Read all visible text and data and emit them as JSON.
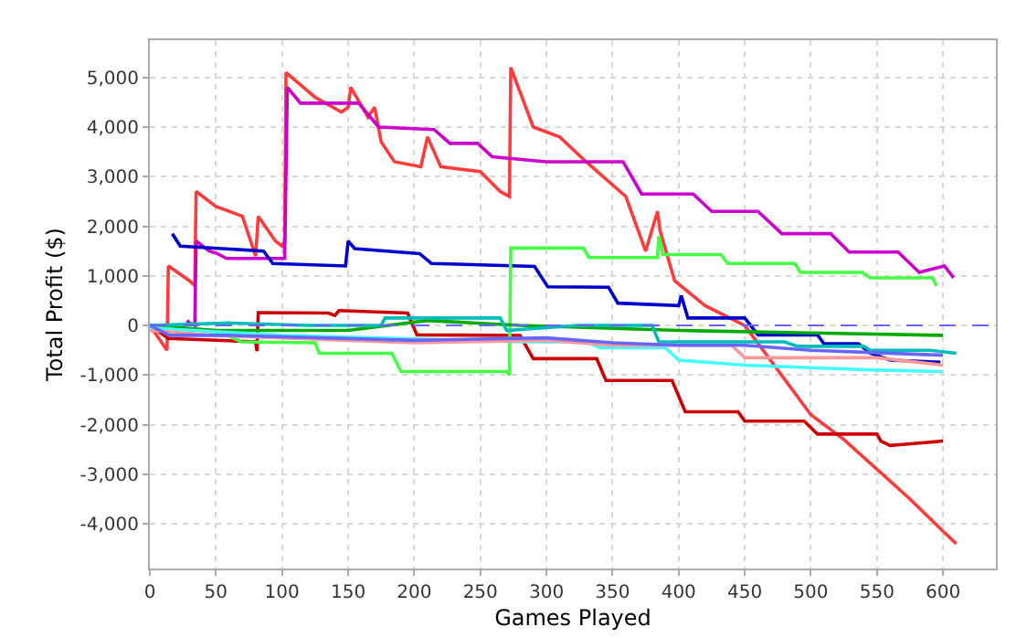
{
  "chart_data": {
    "type": "line",
    "xlabel": "Games Played",
    "ylabel": "Total Profit ($)",
    "xlim": [
      0,
      640
    ],
    "ylim": [
      -4900,
      5750
    ],
    "xticks": [
      0,
      50,
      100,
      150,
      200,
      250,
      300,
      350,
      400,
      450,
      500,
      550,
      600
    ],
    "yticks": [
      {
        "value": -4000,
        "label": "-4,000"
      },
      {
        "value": -3000,
        "label": "-3,000"
      },
      {
        "value": -2000,
        "label": "-2,000"
      },
      {
        "value": -1000,
        "label": "-1,000"
      },
      0,
      {
        "value": 1000,
        "label": "1,000"
      },
      {
        "value": 2000,
        "label": "2,000"
      },
      {
        "value": 3000,
        "label": "3,000"
      },
      {
        "value": 4000,
        "label": "4,000"
      },
      {
        "value": 5000,
        "label": "5,000"
      }
    ],
    "grid": true,
    "marker": "none",
    "line_style": "solid",
    "ref_lines": [
      {
        "axis": "y",
        "value": 0,
        "color": "#6666ff",
        "line_style": "dashed"
      }
    ],
    "series": [
      {
        "color": "#ff3b3b",
        "x": [
          0,
          13,
          14,
          30,
          34,
          35,
          50,
          70,
          80,
          82,
          95,
          100,
          102,
          103,
          125,
          145,
          150,
          152,
          165,
          170,
          175,
          185,
          205,
          210,
          220,
          250,
          265,
          272,
          273,
          290,
          310,
          330,
          360,
          375,
          384,
          386,
          397,
          420,
          450,
          475,
          500,
          525,
          550,
          575,
          600,
          610
        ],
        "values": [
          0,
          -500,
          1200,
          900,
          800,
          2700,
          2400,
          2200,
          1400,
          2200,
          1700,
          1600,
          1700,
          5100,
          4600,
          4300,
          4400,
          4800,
          4200,
          4400,
          3700,
          3300,
          3200,
          3800,
          3200,
          3100,
          2700,
          2600,
          5200,
          4000,
          3800,
          3300,
          2600,
          1500,
          2300,
          1900,
          900,
          400,
          0,
          -900,
          -1800,
          -2300,
          -2900,
          -3500,
          -4150,
          -4400
        ]
      },
      {
        "color": "#cc00cc",
        "x": [
          28,
          30,
          34,
          35,
          45,
          51,
          58,
          102,
          104,
          114,
          158,
          173,
          215,
          227,
          248,
          259,
          300,
          358,
          372,
          411,
          425,
          460,
          478,
          515,
          529,
          566,
          582,
          601,
          608
        ],
        "values": [
          100,
          50,
          0,
          1700,
          1500,
          1450,
          1350,
          1350,
          4800,
          4480,
          4480,
          4000,
          3950,
          3670,
          3670,
          3400,
          3300,
          3300,
          2650,
          2650,
          2300,
          2300,
          1850,
          1850,
          1480,
          1480,
          1070,
          1200,
          960
        ]
      },
      {
        "color": "#0000cc",
        "x": [
          17,
          23,
          86,
          93,
          148,
          150,
          155,
          204,
          213,
          291,
          301,
          347,
          354,
          400,
          402,
          407,
          450,
          460,
          505,
          510,
          536,
          545,
          560,
          598
        ],
        "values": [
          1850,
          1600,
          1500,
          1250,
          1200,
          1700,
          1550,
          1450,
          1250,
          1190,
          780,
          770,
          450,
          400,
          600,
          150,
          150,
          -190,
          -190,
          -370,
          -370,
          -560,
          -700,
          -740
        ]
      },
      {
        "color": "#cc0000",
        "x": [
          0,
          14,
          80,
          81,
          82,
          135,
          140,
          143,
          195,
          202,
          280,
          290,
          338,
          345,
          395,
          405,
          445,
          450,
          495,
          505,
          550,
          553,
          560,
          600
        ],
        "values": [
          0,
          -260,
          -330,
          -520,
          260,
          250,
          200,
          300,
          250,
          -190,
          -200,
          -670,
          -670,
          -1110,
          -1110,
          -1740,
          -1740,
          -1930,
          -1930,
          -2190,
          -2190,
          -2330,
          -2420,
          -2330
        ]
      },
      {
        "color": "#44ff44",
        "x": [
          0,
          55,
          69,
          125,
          128,
          183,
          190,
          270,
          272,
          273,
          328,
          332,
          384,
          385,
          388,
          432,
          437,
          488,
          492,
          539,
          545,
          592,
          595
        ],
        "values": [
          0,
          -150,
          -330,
          -350,
          -560,
          -560,
          -930,
          -930,
          -1000,
          1560,
          1560,
          1370,
          1370,
          1800,
          1430,
          1430,
          1250,
          1250,
          1070,
          1070,
          960,
          960,
          800
        ]
      },
      {
        "color": "#00aa00",
        "x": [
          0,
          50,
          150,
          210,
          280,
          400,
          500,
          600
        ],
        "values": [
          0,
          -100,
          -100,
          100,
          0,
          -100,
          -150,
          -200
        ]
      },
      {
        "color": "#00bbbb",
        "x": [
          0,
          60,
          120,
          175,
          178,
          265,
          270,
          324,
          380,
          385,
          480,
          490,
          540,
          545,
          590,
          610
        ],
        "values": [
          0,
          50,
          0,
          0,
          150,
          150,
          -100,
          0,
          0,
          -330,
          -330,
          -420,
          -420,
          -500,
          -500,
          -560
        ]
      },
      {
        "color": "#44ffff",
        "x": [
          0,
          100,
          280,
          330,
          340,
          390,
          400,
          450,
          500,
          550,
          600
        ],
        "values": [
          -50,
          -200,
          -330,
          -330,
          -450,
          -450,
          -700,
          -800,
          -850,
          -900,
          -930
        ]
      },
      {
        "color": "#ff9999",
        "x": [
          0,
          50,
          150,
          200,
          300,
          350,
          440,
          450,
          550,
          600
        ],
        "values": [
          -100,
          -200,
          -300,
          -350,
          -300,
          -400,
          -400,
          -650,
          -650,
          -800
        ]
      },
      {
        "color": "#6666ff",
        "x": [
          0,
          15,
          60,
          200,
          300,
          350,
          400,
          450,
          500,
          550,
          600
        ],
        "values": [
          0,
          -200,
          -200,
          -300,
          -250,
          -350,
          -400,
          -400,
          -500,
          -550,
          -600
        ]
      }
    ]
  }
}
